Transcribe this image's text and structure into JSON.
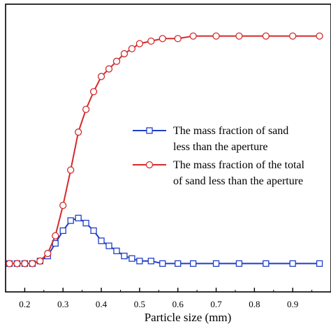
{
  "chart_data": {
    "type": "line",
    "title": "",
    "xlabel": "Particle size (mm)",
    "ylabel": "",
    "xlim": [
      0.15,
      1.0
    ],
    "ylim": [
      0,
      1
    ],
    "x_ticks": [
      0.2,
      0.3,
      0.4,
      0.5,
      0.6,
      0.7,
      0.8,
      0.9
    ],
    "x_tick_labels": [
      "0.2",
      "0.3",
      "0.4",
      "0.5",
      "0.6",
      "0.7",
      "0.8",
      "0.9"
    ],
    "grid": false,
    "legend_position": "right",
    "series": [
      {
        "name": "The mass fraction of sand less than the aperture",
        "name_lines": [
          "The mass fraction of sand",
          "less than the aperture"
        ],
        "color": "#1f3fc4",
        "marker": "square",
        "x": [
          0.16,
          0.18,
          0.2,
          0.22,
          0.24,
          0.26,
          0.28,
          0.3,
          0.32,
          0.34,
          0.36,
          0.38,
          0.4,
          0.42,
          0.44,
          0.46,
          0.48,
          0.5,
          0.53,
          0.56,
          0.6,
          0.64,
          0.7,
          0.76,
          0.83,
          0.9,
          0.97
        ],
        "y": [
          0.09,
          0.09,
          0.09,
          0.09,
          0.1,
          0.12,
          0.17,
          0.22,
          0.26,
          0.27,
          0.25,
          0.22,
          0.18,
          0.16,
          0.14,
          0.12,
          0.11,
          0.1,
          0.1,
          0.09,
          0.09,
          0.09,
          0.09,
          0.09,
          0.09,
          0.09,
          0.09
        ]
      },
      {
        "name": "The mass fraction of the total of sand less than the aperture",
        "name_lines": [
          "The mass fraction of the total",
          "of sand less than the aperture"
        ],
        "color": "#d42a2a",
        "marker": "circle",
        "x": [
          0.16,
          0.18,
          0.2,
          0.22,
          0.24,
          0.26,
          0.28,
          0.3,
          0.32,
          0.34,
          0.36,
          0.38,
          0.4,
          0.42,
          0.44,
          0.46,
          0.48,
          0.5,
          0.53,
          0.56,
          0.6,
          0.64,
          0.7,
          0.76,
          0.83,
          0.9,
          0.97
        ],
        "y": [
          0.09,
          0.09,
          0.09,
          0.09,
          0.1,
          0.13,
          0.2,
          0.32,
          0.46,
          0.61,
          0.7,
          0.77,
          0.83,
          0.86,
          0.89,
          0.92,
          0.94,
          0.96,
          0.97,
          0.98,
          0.98,
          0.99,
          0.99,
          0.99,
          0.99,
          0.99,
          0.99
        ]
      }
    ]
  }
}
